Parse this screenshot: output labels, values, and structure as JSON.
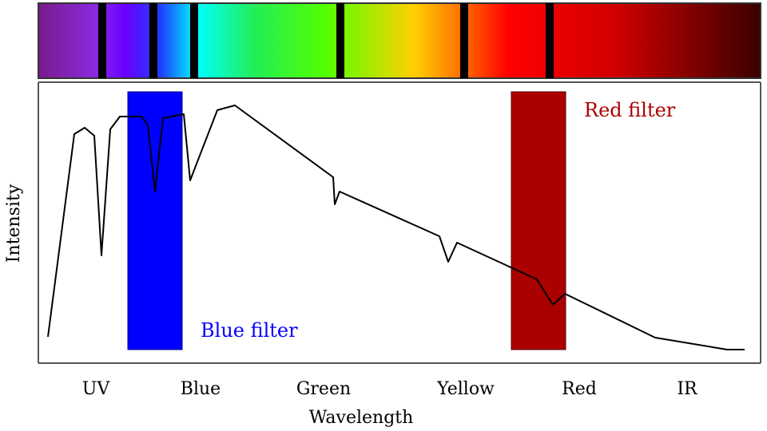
{
  "title": "",
  "spectrum_bar": {
    "colors": [
      "#4b0082",
      "#8b00ff",
      "#0000ff",
      "#00ffff",
      "#00ff00",
      "#ffff00",
      "#ff7f00",
      "#ff0000",
      "#8b0000",
      "#3a0000"
    ],
    "separator_color": "#000000"
  },
  "axes": {
    "xlabel": "Wavelength",
    "ylabel": "Intensity",
    "x_tick_labels": [
      "UV",
      "Blue",
      "Green",
      "Yellow",
      "Red",
      "IR"
    ],
    "line_color": "#000000"
  },
  "filters": {
    "blue": {
      "label": "Blue filter",
      "color": "#0000ff",
      "label_color": "#0000ff"
    },
    "red": {
      "label": "Red filter",
      "color": "#aa0000",
      "label_color": "#aa0000"
    }
  },
  "curve_color": "#000000"
}
